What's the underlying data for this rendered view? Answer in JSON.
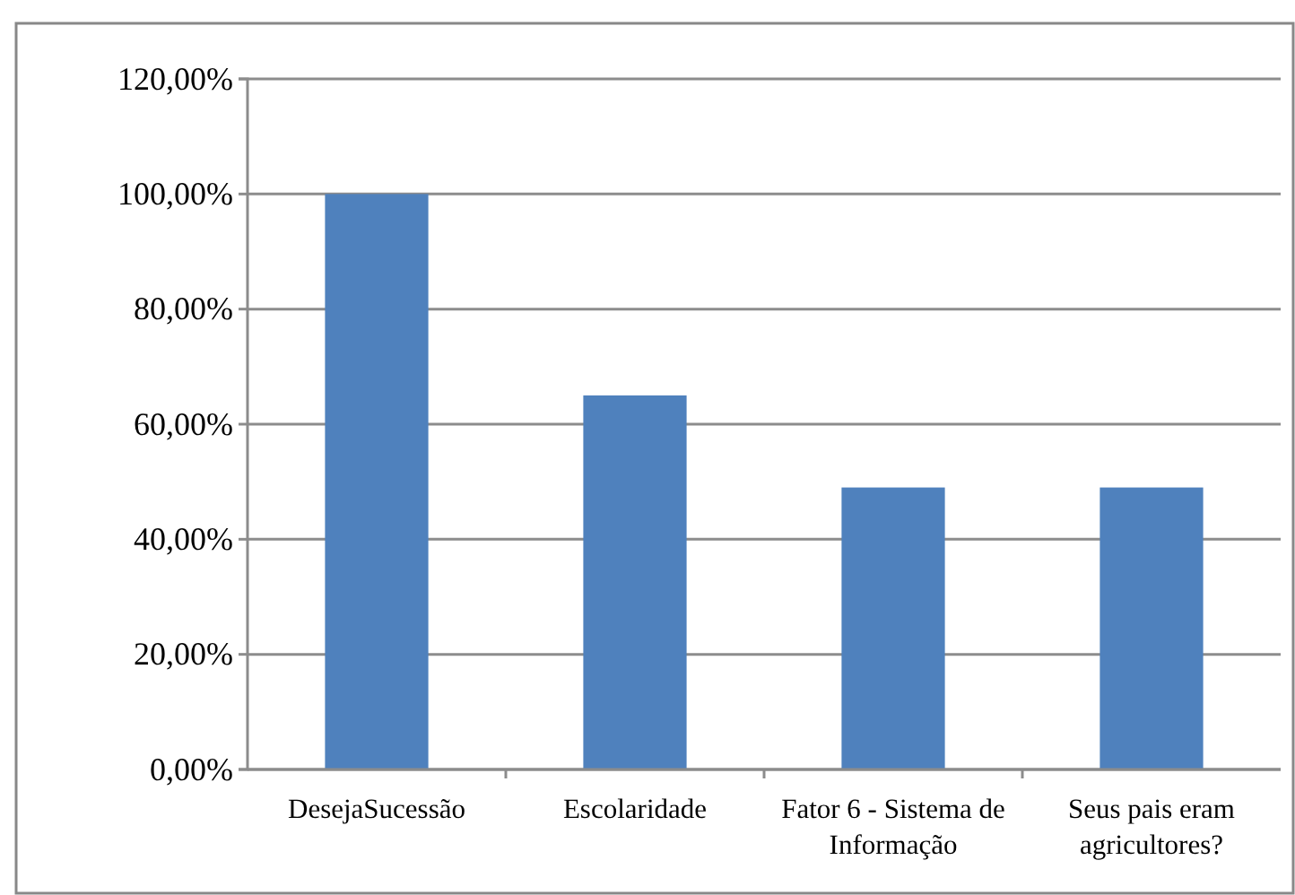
{
  "chart_data": {
    "type": "bar",
    "categories": [
      "DesejaSucessão",
      "Escolaridade",
      "Fator 6 - Sistema de Informação",
      "Seus pais eram agricultores?"
    ],
    "values": [
      100,
      65,
      49,
      49
    ],
    "color": "#4f81bd",
    "ylim": [
      0,
      120
    ],
    "yticks": [
      {
        "value": 0,
        "label": "0,00%"
      },
      {
        "value": 20,
        "label": "20,00%"
      },
      {
        "value": 40,
        "label": "40,00%"
      },
      {
        "value": 60,
        "label": "60,00%"
      },
      {
        "value": 80,
        "label": "80,00%"
      },
      {
        "value": 100,
        "label": "100,00%"
      },
      {
        "value": 120,
        "label": "120,00%"
      }
    ],
    "grid": "y"
  }
}
